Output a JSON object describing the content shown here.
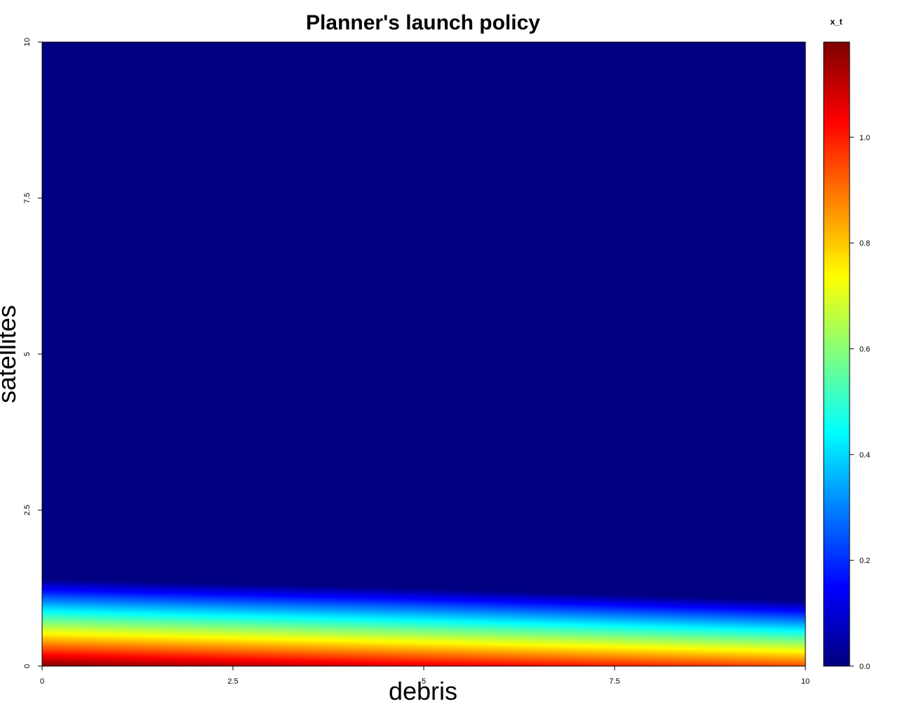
{
  "chart_data": {
    "type": "heatmap",
    "title": "Planner's launch policy",
    "xlabel": "debris",
    "ylabel": "satellites",
    "xlim": [
      0,
      10
    ],
    "ylim": [
      0,
      10
    ],
    "x_ticks": [
      "0",
      "2.5",
      "5",
      "7.5",
      "10"
    ],
    "y_ticks": [
      "0",
      "2.5",
      "5",
      "7.5",
      "10"
    ],
    "colorbar": {
      "title": "x_t",
      "range": [
        0,
        1.18
      ],
      "ticks": [
        "0.0",
        "0.2",
        "0.4",
        "0.6",
        "0.8",
        "1.0"
      ],
      "colormap": "jet"
    },
    "field_profiles": {
      "description_free_values": true,
      "debris": [
        0,
        5,
        10
      ],
      "value_at_zero_satellites": [
        1.18,
        1.06,
        0.95
      ],
      "satellites_where_value_reaches_zero": [
        1.4,
        1.25,
        1.05
      ]
    }
  }
}
